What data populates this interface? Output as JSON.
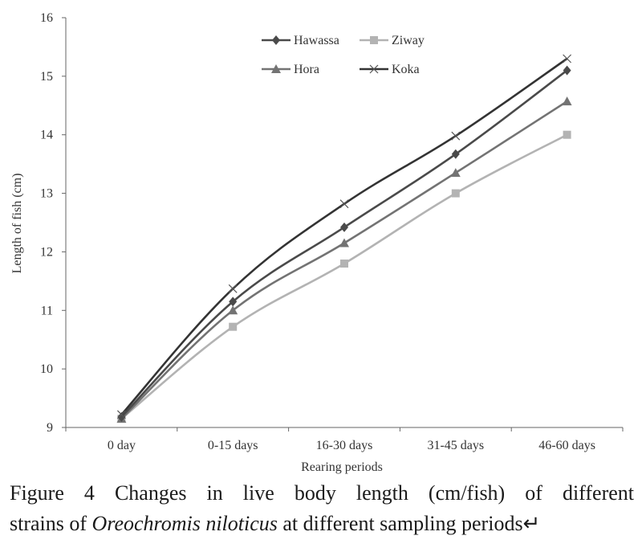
{
  "chart_data": {
    "type": "line",
    "categories": [
      "0 day",
      "0-15 days",
      "16-30 days",
      "31-45 days",
      "46-60 days"
    ],
    "series": [
      {
        "name": "Hawassa",
        "values": [
          9.18,
          11.15,
          12.42,
          13.67,
          15.1
        ],
        "color": "#4a4a4a",
        "marker": "diamond"
      },
      {
        "name": "Ziway",
        "values": [
          9.15,
          10.72,
          11.8,
          13.0,
          14.0
        ],
        "color": "#b3b3b3",
        "marker": "square"
      },
      {
        "name": "Hora",
        "values": [
          9.15,
          11.0,
          12.15,
          13.35,
          14.57
        ],
        "color": "#737373",
        "marker": "triangle"
      },
      {
        "name": "Koka",
        "values": [
          9.22,
          11.37,
          12.82,
          13.98,
          15.3
        ],
        "color": "#333333",
        "marker": "x"
      }
    ],
    "xlabel": "Rearing periods",
    "ylabel": "Length of fish (cm)",
    "ylim": [
      9,
      16
    ],
    "yticks": [
      "9",
      "10",
      "11",
      "12",
      "13",
      "14",
      "15",
      "16"
    ],
    "grid": false,
    "legend_position": "top-center"
  },
  "caption": {
    "line1": "Figure 4 Changes in live body length (cm/fish) of different",
    "line2_prefix": "strains of ",
    "line2_italic": "Oreochromis niloticus",
    "line2_suffix": " at different sampling periods↵"
  }
}
